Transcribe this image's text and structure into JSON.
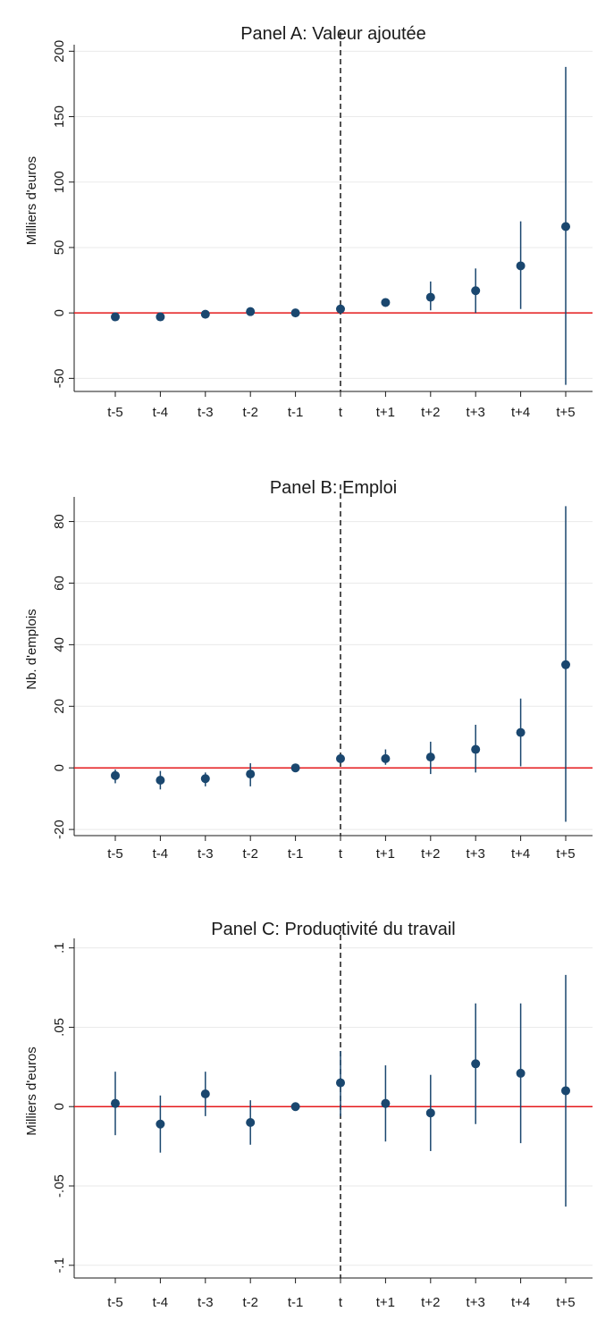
{
  "colors": {
    "marker": "#1a476f",
    "zero_line": "#e41a1c",
    "event_line": "#1a1a1a",
    "grid": "#eaeaea",
    "axis": "#1a1a1a"
  },
  "chart_data": [
    {
      "type": "scatter",
      "title": "Panel A: Valeur ajoutée",
      "xlabel": "",
      "ylabel": "Milliers d'euros",
      "categories": [
        "t-5",
        "t-4",
        "t-3",
        "t-2",
        "t-1",
        "t",
        "t+1",
        "t+2",
        "t+3",
        "t+4",
        "t+5"
      ],
      "ylim": [
        -60,
        205
      ],
      "yticks": [
        -50,
        0,
        50,
        100,
        150,
        200
      ],
      "ytick_labels": [
        "-50",
        "0",
        "50",
        "100",
        "150",
        "200"
      ],
      "grid": true,
      "zero_line": 0,
      "event_line_at": "t",
      "series": [
        {
          "estimate": [
            -3,
            -3,
            -1,
            1,
            0,
            3,
            8,
            12,
            17,
            36,
            66
          ],
          "ci_low": [
            -3,
            -3,
            -1,
            1,
            0,
            3,
            5,
            2,
            0,
            3,
            -55
          ],
          "ci_high": [
            -3,
            -3,
            -1,
            1,
            0,
            3,
            11,
            24,
            34,
            70,
            188
          ]
        }
      ]
    },
    {
      "type": "scatter",
      "title": "Panel B: Emploi",
      "xlabel": "",
      "ylabel": "Nb. d'emplois",
      "categories": [
        "t-5",
        "t-4",
        "t-3",
        "t-2",
        "t-1",
        "t",
        "t+1",
        "t+2",
        "t+3",
        "t+4",
        "t+5"
      ],
      "ylim": [
        -22,
        88
      ],
      "yticks": [
        -20,
        0,
        20,
        40,
        60,
        80
      ],
      "ytick_labels": [
        "-20",
        "0",
        "20",
        "40",
        "60",
        "80"
      ],
      "grid": true,
      "zero_line": 0,
      "event_line_at": "t",
      "series": [
        {
          "estimate": [
            -2.5,
            -4,
            -3.5,
            -2,
            0,
            3,
            3,
            3.5,
            6,
            11.5,
            33.5
          ],
          "ci_low": [
            -5,
            -7,
            -6,
            -6,
            0,
            3,
            1,
            -2,
            -1.5,
            0.5,
            -17.5
          ],
          "ci_high": [
            -0.5,
            -1,
            -1.5,
            1.5,
            0,
            3,
            6,
            8.5,
            14,
            22.5,
            85
          ]
        }
      ]
    },
    {
      "type": "scatter",
      "title": "Panel C: Productivité du travail",
      "xlabel": "",
      "ylabel": "Milliers d'euros",
      "categories": [
        "t-5",
        "t-4",
        "t-3",
        "t-2",
        "t-1",
        "t",
        "t+1",
        "t+2",
        "t+3",
        "t+4",
        "t+5"
      ],
      "ylim": [
        -0.108,
        0.106
      ],
      "yticks": [
        -0.1,
        -0.05,
        0,
        0.05,
        0.1
      ],
      "ytick_labels": [
        "-.1",
        "-.05",
        "0",
        ".05",
        ".1"
      ],
      "grid": true,
      "zero_line": 0,
      "event_line_at": "t",
      "series": [
        {
          "estimate": [
            0.002,
            -0.011,
            0.008,
            -0.01,
            0,
            0.015,
            0.002,
            -0.004,
            0.027,
            0.021,
            0.01
          ],
          "ci_low": [
            -0.018,
            -0.029,
            -0.006,
            -0.024,
            0,
            -0.006,
            -0.022,
            -0.028,
            -0.011,
            -0.023,
            -0.063
          ],
          "ci_high": [
            0.022,
            0.007,
            0.022,
            0.004,
            0,
            0.035,
            0.026,
            0.02,
            0.065,
            0.065,
            0.083
          ]
        }
      ]
    }
  ]
}
